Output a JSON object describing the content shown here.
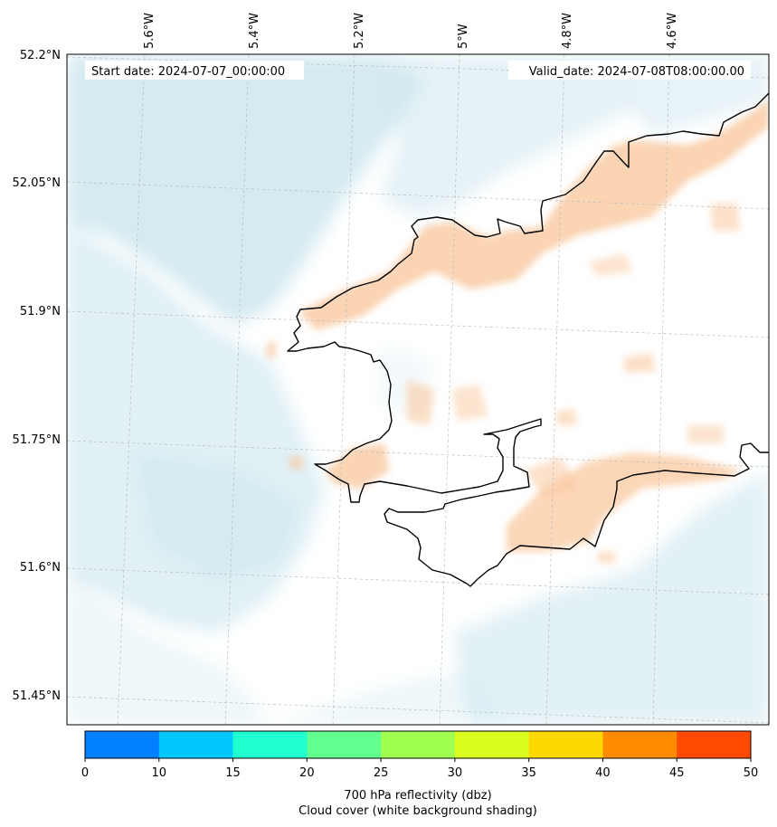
{
  "map": {
    "start_label": "Start date: 2024-07-07_00:00:00",
    "valid_label": "Valid_date: 2024-07-08T08:00:00.00",
    "lon_labels": [
      "5.6°W",
      "5.4°W",
      "5.2°W",
      "5°W",
      "4.8°W",
      "4.6°W"
    ],
    "lat_labels": [
      "52.2°N",
      "52.05°N",
      "51.9°N",
      "51.75°N",
      "51.6°N",
      "51.45°N"
    ],
    "colors": {
      "coast": "#000000",
      "cloud": "#cfe8ef",
      "reflectivity_low": "#f9c9a0",
      "gridline": "#bbbbbb"
    }
  },
  "colorbar": {
    "ticks": [
      "0",
      "10",
      "15",
      "20",
      "25",
      "30",
      "35",
      "40",
      "45",
      "50"
    ],
    "colors": [
      "#0080ff",
      "#00c8ff",
      "#20ffd0",
      "#60ff90",
      "#a0ff50",
      "#d8ff20",
      "#ffd800",
      "#ff8c00",
      "#ff4a00"
    ],
    "label_line1": "700 hPa reflectivity (dbz)",
    "label_line2": "Cloud cover (white background shading)"
  }
}
